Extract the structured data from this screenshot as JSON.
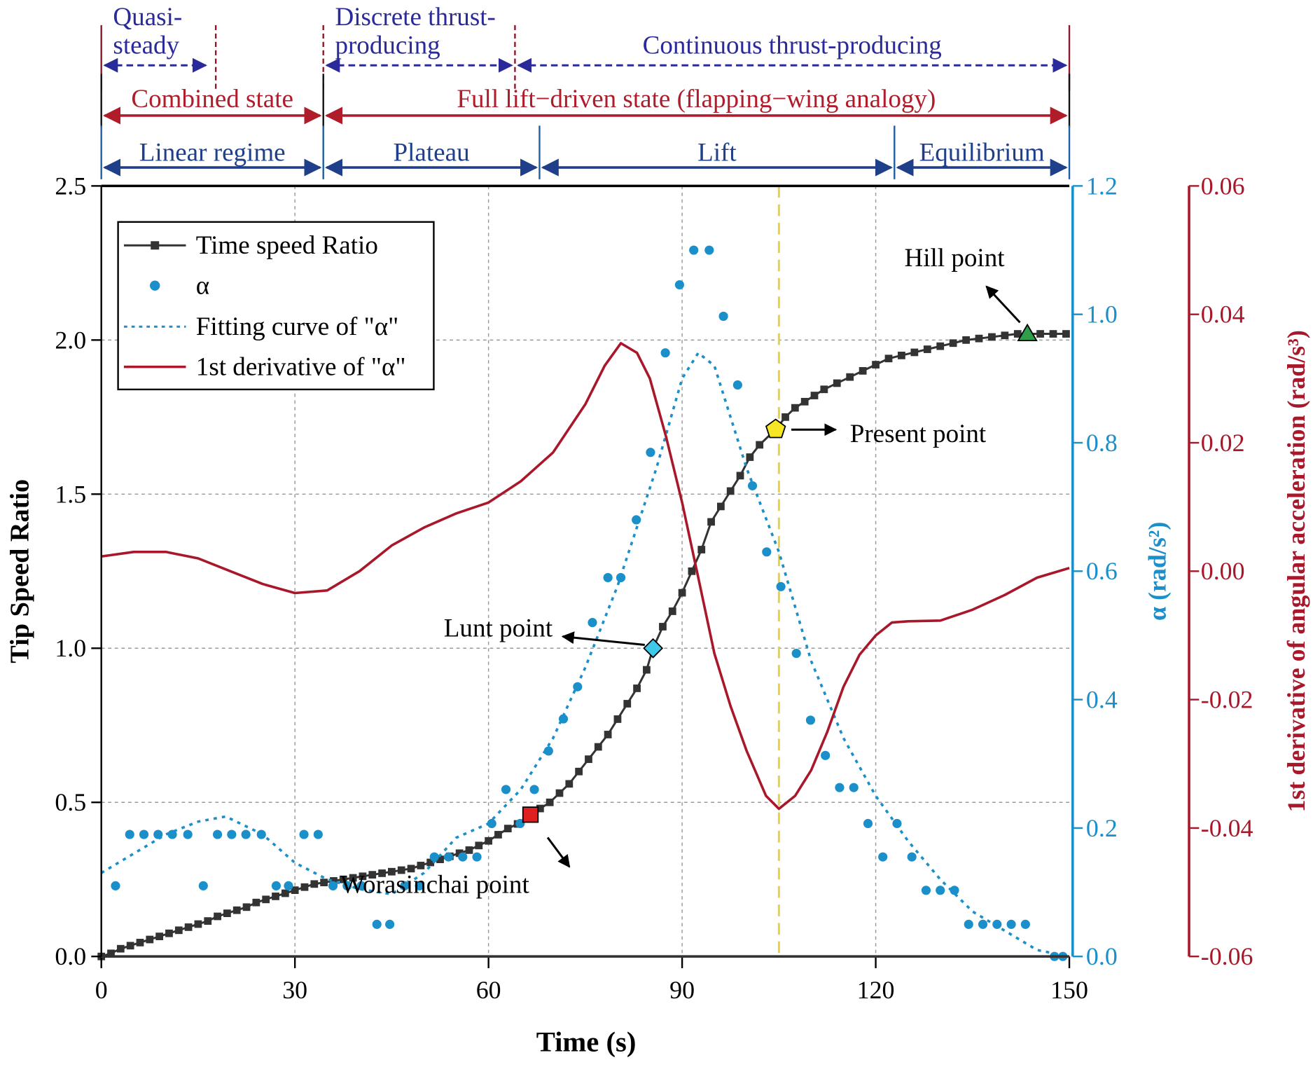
{
  "chart_data": {
    "type": "line",
    "xlabel": "Time (s)",
    "xlim": [
      0,
      150
    ],
    "xticks": [
      "0",
      "30",
      "60",
      "90",
      "120",
      "150"
    ],
    "grid": true,
    "legend_placement": "top-left",
    "axes": {
      "left": {
        "label": "Tip Speed Ratio",
        "lim": [
          0,
          2.5
        ],
        "ticks": [
          "0.0",
          "0.5",
          "1.0",
          "1.5",
          "2.0",
          "2.5"
        ],
        "color": "#000000"
      },
      "right1": {
        "label": "α (rad/s²)",
        "lim": [
          0,
          1.2
        ],
        "ticks": [
          "0.0",
          "0.2",
          "0.4",
          "0.6",
          "0.8",
          "1.0",
          "1.2"
        ],
        "color": "#1a8fc9"
      },
      "right2": {
        "label": "1st derivative of angular acceleration (rad/s³)",
        "lim": [
          -0.06,
          0.06
        ],
        "ticks": [
          "-0.06",
          "-0.04",
          "-0.02",
          "0.00",
          "0.02",
          "0.04",
          "0.06"
        ],
        "color": "#a8182a"
      }
    },
    "legend": [
      "Time speed Ratio",
      "α",
      "Fitting curve of \"α\"",
      "1st derivative of \"α\""
    ],
    "series": [
      {
        "name": "Time speed Ratio",
        "axis": "left",
        "style": "line-square",
        "color": "#333333",
        "points": [
          [
            0,
            0
          ],
          [
            1.5,
            0.01
          ],
          [
            3,
            0.025
          ],
          [
            4.5,
            0.035
          ],
          [
            6,
            0.045
          ],
          [
            7.5,
            0.055
          ],
          [
            9,
            0.065
          ],
          [
            10.5,
            0.075
          ],
          [
            12,
            0.085
          ],
          [
            13.5,
            0.095
          ],
          [
            15,
            0.105
          ],
          [
            16.5,
            0.115
          ],
          [
            18,
            0.13
          ],
          [
            19.5,
            0.14
          ],
          [
            21,
            0.15
          ],
          [
            22.5,
            0.16
          ],
          [
            24,
            0.175
          ],
          [
            25.5,
            0.185
          ],
          [
            27,
            0.195
          ],
          [
            28.5,
            0.205
          ],
          [
            30,
            0.215
          ],
          [
            31.5,
            0.225
          ],
          [
            33,
            0.235
          ],
          [
            34.5,
            0.24
          ],
          [
            36,
            0.245
          ],
          [
            37.5,
            0.25
          ],
          [
            39,
            0.255
          ],
          [
            40.5,
            0.26
          ],
          [
            42,
            0.265
          ],
          [
            43.5,
            0.27
          ],
          [
            45,
            0.275
          ],
          [
            46.5,
            0.28
          ],
          [
            48,
            0.285
          ],
          [
            49.5,
            0.295
          ],
          [
            51,
            0.305
          ],
          [
            52.5,
            0.315
          ],
          [
            54,
            0.325
          ],
          [
            55.5,
            0.335
          ],
          [
            57,
            0.345
          ],
          [
            58.5,
            0.36
          ],
          [
            60,
            0.375
          ],
          [
            61.5,
            0.395
          ],
          [
            63,
            0.415
          ],
          [
            64.5,
            0.43
          ],
          [
            66.5,
            0.46
          ],
          [
            68,
            0.48
          ],
          [
            69.5,
            0.5
          ],
          [
            71,
            0.53
          ],
          [
            72.5,
            0.56
          ],
          [
            74,
            0.6
          ],
          [
            75.5,
            0.64
          ],
          [
            77,
            0.68
          ],
          [
            78.5,
            0.72
          ],
          [
            80,
            0.77
          ],
          [
            81.5,
            0.82
          ],
          [
            83,
            0.87
          ],
          [
            84.5,
            0.93
          ],
          [
            85.5,
            1.0
          ],
          [
            87,
            1.07
          ],
          [
            88.5,
            1.12
          ],
          [
            90,
            1.18
          ],
          [
            91.5,
            1.25
          ],
          [
            93,
            1.32
          ],
          [
            94.5,
            1.41
          ],
          [
            96,
            1.46
          ],
          [
            97.5,
            1.51
          ],
          [
            99,
            1.56
          ],
          [
            100.5,
            1.62
          ],
          [
            102,
            1.66
          ],
          [
            104.5,
            1.71
          ],
          [
            106,
            1.75
          ],
          [
            107.5,
            1.78
          ],
          [
            109,
            1.8
          ],
          [
            110.5,
            1.82
          ],
          [
            112,
            1.84
          ],
          [
            114,
            1.86
          ],
          [
            116,
            1.88
          ],
          [
            118,
            1.9
          ],
          [
            120,
            1.92
          ],
          [
            122,
            1.94
          ],
          [
            124,
            1.95
          ],
          [
            126,
            1.96
          ],
          [
            128,
            1.97
          ],
          [
            130,
            1.98
          ],
          [
            132,
            1.99
          ],
          [
            134,
            2.0
          ],
          [
            136,
            2.005
          ],
          [
            138,
            2.01
          ],
          [
            140,
            2.015
          ],
          [
            142,
            2.02
          ],
          [
            143.5,
            2.02
          ],
          [
            145.5,
            2.02
          ],
          [
            147.5,
            2.02
          ],
          [
            149.5,
            2.02
          ]
        ]
      },
      {
        "name": "α",
        "axis": "right1",
        "style": "scatter",
        "color": "#1a8fc9",
        "points": [
          [
            2.2,
            0.11
          ],
          [
            4.4,
            0.19
          ],
          [
            6.6,
            0.19
          ],
          [
            8.8,
            0.19
          ],
          [
            11,
            0.19
          ],
          [
            13.4,
            0.19
          ],
          [
            15.8,
            0.11
          ],
          [
            18,
            0.19
          ],
          [
            20.2,
            0.19
          ],
          [
            22.4,
            0.19
          ],
          [
            24.8,
            0.19
          ],
          [
            27.1,
            0.11
          ],
          [
            29,
            0.11
          ],
          [
            31.4,
            0.19
          ],
          [
            33.6,
            0.19
          ],
          [
            35.9,
            0.11
          ],
          [
            38.1,
            0.11
          ],
          [
            40.3,
            0.11
          ],
          [
            42.7,
            0.05
          ],
          [
            44.7,
            0.05
          ],
          [
            47,
            0.11
          ],
          [
            49.3,
            0.11
          ],
          [
            51.6,
            0.155
          ],
          [
            53.8,
            0.155
          ],
          [
            56,
            0.155
          ],
          [
            58.2,
            0.155
          ],
          [
            60.5,
            0.207
          ],
          [
            62.7,
            0.26
          ],
          [
            64.9,
            0.207
          ],
          [
            67.1,
            0.26
          ],
          [
            69.3,
            0.32
          ],
          [
            71.6,
            0.37
          ],
          [
            73.8,
            0.42
          ],
          [
            76.1,
            0.52
          ],
          [
            78.5,
            0.59
          ],
          [
            80.5,
            0.59
          ],
          [
            82.9,
            0.68
          ],
          [
            85.1,
            0.785
          ],
          [
            87.4,
            0.94
          ],
          [
            89.6,
            1.046
          ],
          [
            91.8,
            1.1
          ],
          [
            94.2,
            1.1
          ],
          [
            96.4,
            0.997
          ],
          [
            98.6,
            0.89
          ],
          [
            100.9,
            0.733
          ],
          [
            103.1,
            0.63
          ],
          [
            105.3,
            0.576
          ],
          [
            107.7,
            0.472
          ],
          [
            109.9,
            0.368
          ],
          [
            112.2,
            0.313
          ],
          [
            114.4,
            0.263
          ],
          [
            116.6,
            0.263
          ],
          [
            118.8,
            0.207
          ],
          [
            121.1,
            0.155
          ],
          [
            123.3,
            0.207
          ],
          [
            125.6,
            0.155
          ],
          [
            127.8,
            0.103
          ],
          [
            130,
            0.103
          ],
          [
            132.2,
            0.103
          ],
          [
            134.4,
            0.05
          ],
          [
            136.6,
            0.05
          ],
          [
            138.8,
            0.05
          ],
          [
            141,
            0.05
          ],
          [
            143.2,
            0.05
          ],
          [
            147.7,
            0
          ],
          [
            149,
            0
          ]
        ]
      },
      {
        "name": "Fitting curve of \"α\"",
        "axis": "right1",
        "style": "dotted",
        "color": "#1a8fc9",
        "points": [
          [
            0,
            0.13
          ],
          [
            5,
            0.16
          ],
          [
            10,
            0.19
          ],
          [
            15,
            0.21
          ],
          [
            19.3,
            0.218
          ],
          [
            25,
            0.19
          ],
          [
            30,
            0.146
          ],
          [
            35,
            0.12
          ],
          [
            40,
            0.105
          ],
          [
            45,
            0.097
          ],
          [
            50,
            0.13
          ],
          [
            55,
            0.185
          ],
          [
            60,
            0.207
          ],
          [
            65,
            0.26
          ],
          [
            70,
            0.34
          ],
          [
            75,
            0.45
          ],
          [
            80,
            0.577
          ],
          [
            86,
            0.76
          ],
          [
            90,
            0.9
          ],
          [
            92.5,
            0.94
          ],
          [
            95,
            0.92
          ],
          [
            100,
            0.76
          ],
          [
            105,
            0.63
          ],
          [
            110,
            0.46
          ],
          [
            115,
            0.34
          ],
          [
            120,
            0.25
          ],
          [
            125,
            0.18
          ],
          [
            130,
            0.12
          ],
          [
            135,
            0.07
          ],
          [
            140,
            0.04
          ],
          [
            145,
            0.01
          ],
          [
            150,
            0
          ]
        ]
      },
      {
        "name": "1st derivative of \"α\"",
        "axis": "right2",
        "style": "line",
        "color": "#a8182a",
        "points": [
          [
            0,
            0.0023
          ],
          [
            5,
            0.003
          ],
          [
            10,
            0.003
          ],
          [
            15,
            0.002
          ],
          [
            20,
            0.0
          ],
          [
            25,
            -0.002
          ],
          [
            30,
            -0.0034
          ],
          [
            35,
            -0.003
          ],
          [
            40,
            0.0
          ],
          [
            45,
            0.004
          ],
          [
            50,
            0.0068
          ],
          [
            55,
            0.009
          ],
          [
            60,
            0.0107
          ],
          [
            65,
            0.014
          ],
          [
            70,
            0.0185
          ],
          [
            75,
            0.026
          ],
          [
            78,
            0.032
          ],
          [
            80.5,
            0.0355
          ],
          [
            83,
            0.034
          ],
          [
            85,
            0.03
          ],
          [
            87.5,
            0.021
          ],
          [
            90,
            0.0107
          ],
          [
            92.5,
            -0.001
          ],
          [
            95,
            -0.0128
          ],
          [
            97.5,
            -0.021
          ],
          [
            100,
            -0.028
          ],
          [
            103,
            -0.035
          ],
          [
            105,
            -0.037
          ],
          [
            107.5,
            -0.035
          ],
          [
            110,
            -0.031
          ],
          [
            112.5,
            -0.025
          ],
          [
            115,
            -0.018
          ],
          [
            117.5,
            -0.013
          ],
          [
            120,
            -0.01
          ],
          [
            122.5,
            -0.008
          ],
          [
            125,
            -0.0078
          ],
          [
            130,
            -0.0077
          ],
          [
            135,
            -0.006
          ],
          [
            140,
            -0.0037
          ],
          [
            145,
            -0.001
          ],
          [
            150,
            0.0005
          ]
        ]
      }
    ],
    "markers": [
      {
        "label": "Worasinchai point",
        "x": 66.5,
        "y": 0.46,
        "shape": "square",
        "color": "#e02020"
      },
      {
        "label": "Lunt point",
        "x": 85.5,
        "y": 1.0,
        "shape": "diamond",
        "color": "#40c8e8"
      },
      {
        "label": "Present point",
        "x": 104.5,
        "y": 1.71,
        "shape": "pentagon",
        "color": "#f5e626"
      },
      {
        "label": "Hill point",
        "x": 143.5,
        "y": 2.02,
        "shape": "triangle",
        "color": "#2e9e4a"
      }
    ],
    "vline": {
      "x": 105,
      "color": "#e8d04a"
    },
    "phases": [
      {
        "row": "thrust",
        "color": "#2a2a9a",
        "items": [
          {
            "label": "Quasi-steady",
            "lines": [
              "Quasi-",
              "steady"
            ],
            "start": 0,
            "end": 16.7
          },
          {
            "label": "Discrete thrust-producing",
            "lines": [
              "Discrete thrust-",
              "producing"
            ],
            "start": 34.4,
            "end": 64.1
          },
          {
            "label": "Continuous thrust-producing",
            "lines": [
              "Continuous thrust-producing"
            ],
            "start": 64.1,
            "end": 150
          }
        ]
      },
      {
        "row": "state",
        "color": "#b01c2a",
        "items": [
          {
            "label": "Combined state",
            "lines": [
              "Combined state"
            ],
            "start": 0,
            "end": 34.4
          },
          {
            "label": "Full lift−driven state (flapping−wing analogy)",
            "lines": [
              "Full lift−driven state (flapping−wing analogy)"
            ],
            "start": 34.4,
            "end": 150
          }
        ]
      },
      {
        "row": "regime",
        "color": "#1f3f8a",
        "items": [
          {
            "label": "Linear regime",
            "lines": [
              "Linear regime"
            ],
            "start": 0,
            "end": 34.4
          },
          {
            "label": "Plateau",
            "lines": [
              "Plateau"
            ],
            "start": 34.4,
            "end": 67.9
          },
          {
            "label": "Lift",
            "lines": [
              "Lift"
            ],
            "start": 67.9,
            "end": 122.9
          },
          {
            "label": "Equilibrium",
            "lines": [
              "Equilibrium"
            ],
            "start": 122.9,
            "end": 150
          }
        ]
      }
    ]
  }
}
